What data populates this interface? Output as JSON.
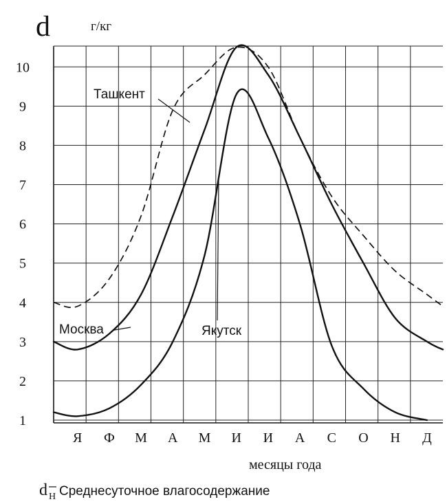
{
  "chart_data": {
    "type": "line",
    "ylabel_symbol": "d",
    "yunit": "г/кг",
    "xlabel": "месяцы года",
    "caption_symbol": "d",
    "caption_subscript": "H",
    "caption_text": "Среднесуточное влагосодержание",
    "categories": [
      "Я",
      "Ф",
      "М",
      "А",
      "М",
      "И",
      "И",
      "А",
      "С",
      "О",
      "Н",
      "Д"
    ],
    "ylim": [
      1,
      11
    ],
    "yticks": [
      1,
      2,
      3,
      4,
      5,
      6,
      7,
      8,
      9,
      10
    ],
    "grid": true,
    "x_range": [
      0.25,
      12.5
    ],
    "series": [
      {
        "name": "Москва",
        "style": "solid",
        "points": [
          [
            0.25,
            3.0
          ],
          [
            1,
            2.8
          ],
          [
            2,
            3.2
          ],
          [
            3,
            4.2
          ],
          [
            4,
            6.2
          ],
          [
            5,
            8.4
          ],
          [
            6,
            10.5
          ],
          [
            7,
            9.8
          ],
          [
            8,
            8.2
          ],
          [
            9,
            6.5
          ],
          [
            10,
            5.0
          ],
          [
            11,
            3.6
          ],
          [
            12,
            3.0
          ],
          [
            12.5,
            2.8
          ]
        ]
      },
      {
        "name": "Якутск",
        "style": "solid",
        "points": [
          [
            0.25,
            1.2
          ],
          [
            1,
            1.1
          ],
          [
            2,
            1.3
          ],
          [
            3,
            1.9
          ],
          [
            4,
            3.0
          ],
          [
            5,
            5.2
          ],
          [
            6,
            9.3
          ],
          [
            7,
            8.2
          ],
          [
            8,
            6.0
          ],
          [
            9,
            2.9
          ],
          [
            10,
            1.8
          ],
          [
            11,
            1.2
          ],
          [
            12,
            1.0
          ]
        ]
      },
      {
        "name": "Ташкент",
        "style": "dashed",
        "points": [
          [
            0.25,
            4.0
          ],
          [
            1,
            3.9
          ],
          [
            2,
            4.6
          ],
          [
            3,
            6.2
          ],
          [
            4,
            8.9
          ],
          [
            5,
            9.8
          ],
          [
            6,
            10.5
          ],
          [
            7,
            10.0
          ],
          [
            8,
            8.2
          ],
          [
            9,
            6.7
          ],
          [
            10,
            5.7
          ],
          [
            11,
            4.8
          ],
          [
            12,
            4.2
          ],
          [
            12.5,
            3.9
          ]
        ]
      }
    ]
  }
}
